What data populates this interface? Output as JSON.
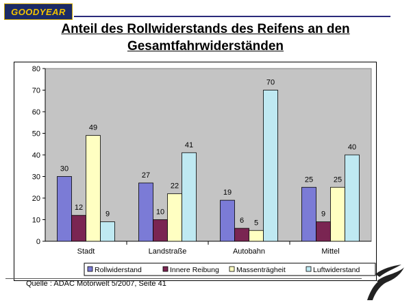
{
  "brand": {
    "logo_text": "GOOD✨YEAR"
  },
  "slide": {
    "title_line1": "Anteil des Rollwiderstands des Reifens an den",
    "title_line2": "Gesamtfahrwiderständen",
    "source": "Quelle : ADAC Motorwelt 5/2007, Seite 41"
  },
  "colors": {
    "Rollwiderstand": "#7b7bd6",
    "Innere Reibung": "#7a2552",
    "Massenträgheit": "#ffffc2",
    "Luftwiderstand": "#bfe9f2",
    "plot_bg": "#c4c4c4"
  },
  "chart_data": {
    "type": "bar",
    "categories": [
      "Stadt",
      "Landstraße",
      "Autobahn",
      "Mittel"
    ],
    "series": [
      {
        "name": "Rollwiderstand",
        "values": [
          30,
          27,
          19,
          25
        ]
      },
      {
        "name": "Innere Reibung",
        "values": [
          12,
          10,
          6,
          9
        ]
      },
      {
        "name": "Massenträgheit",
        "values": [
          49,
          22,
          5,
          25
        ]
      },
      {
        "name": "Luftwiderstand",
        "values": [
          9,
          41,
          70,
          40
        ]
      }
    ],
    "ylim": [
      0,
      80
    ],
    "yticks": [
      0,
      10,
      20,
      30,
      40,
      50,
      60,
      70,
      80
    ],
    "grid": false,
    "legend": "bottom"
  }
}
